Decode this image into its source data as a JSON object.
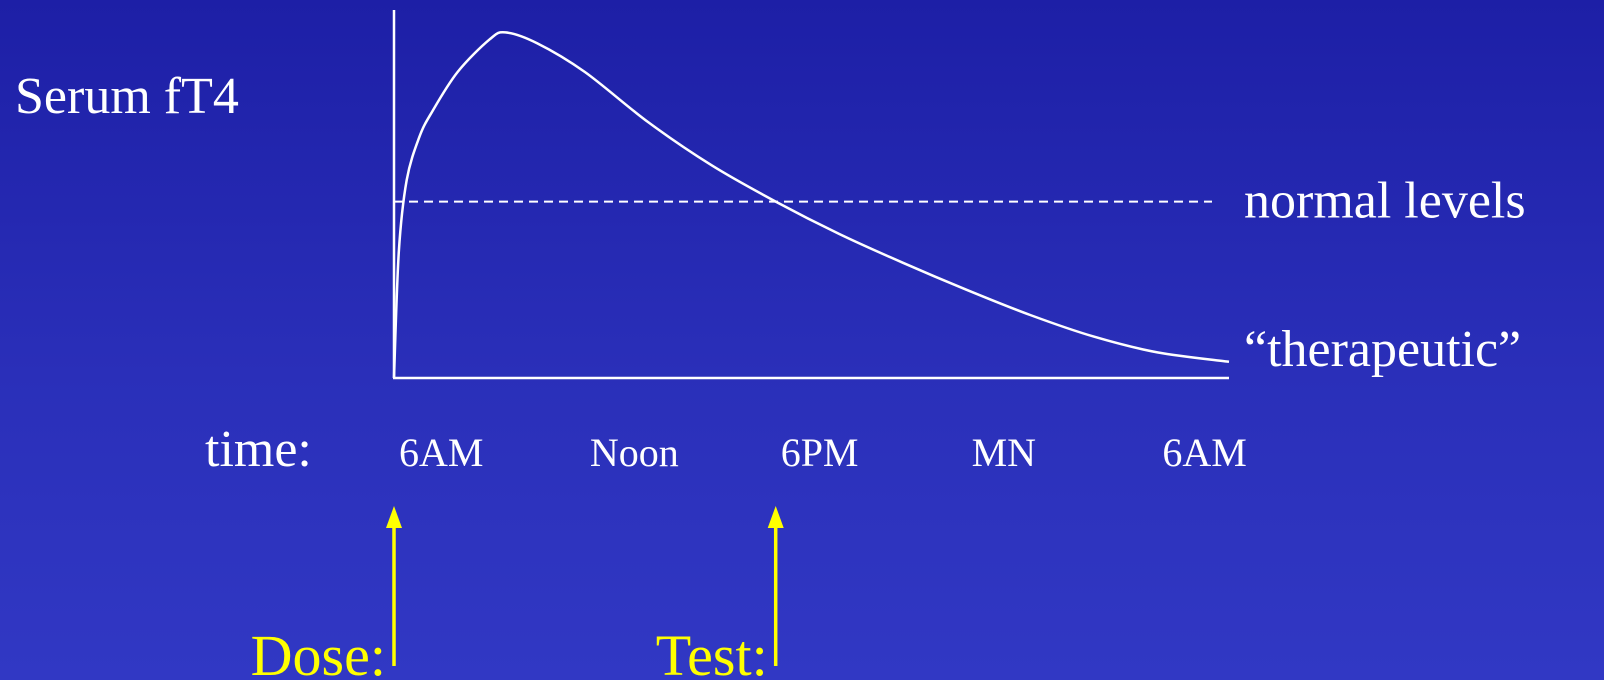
{
  "chart_data": {
    "type": "line",
    "ylabel": "Serum fT4",
    "xlabel": "time:",
    "categories": [
      "6AM",
      "Noon",
      "6PM",
      "MN",
      "6AM"
    ],
    "x_hours": [
      0,
      6,
      12,
      18,
      24
    ],
    "xlim": [
      0,
      26.25
    ],
    "ylim": [
      0,
      100
    ],
    "series": [
      {
        "x": [
          0,
          0.15,
          0.4,
          0.8,
          1.2,
          2.0,
          3.0,
          3.5,
          4.5,
          6,
          8,
          10,
          12,
          14,
          16,
          18,
          20,
          22,
          24,
          26.25
        ],
        "values": [
          0,
          35,
          55,
          67,
          74,
          85,
          94,
          96,
          93,
          85,
          71,
          59,
          49,
          40,
          32,
          24.5,
          17.5,
          11.5,
          7.1,
          4.5
        ]
      }
    ],
    "reference_lines": [
      {
        "y": 49,
        "label": "normal levels",
        "style": "dashed"
      },
      {
        "y": 4.5,
        "label": "“therapeutic”",
        "style": "none"
      }
    ],
    "annotations": [
      {
        "label": "Dose:",
        "x": 0,
        "color": "#ffff00"
      },
      {
        "label": "Test:",
        "x": 12,
        "color": "#ffff00"
      }
    ]
  },
  "colors": {
    "line": "#ffffff",
    "annotation": "#ffff00"
  }
}
